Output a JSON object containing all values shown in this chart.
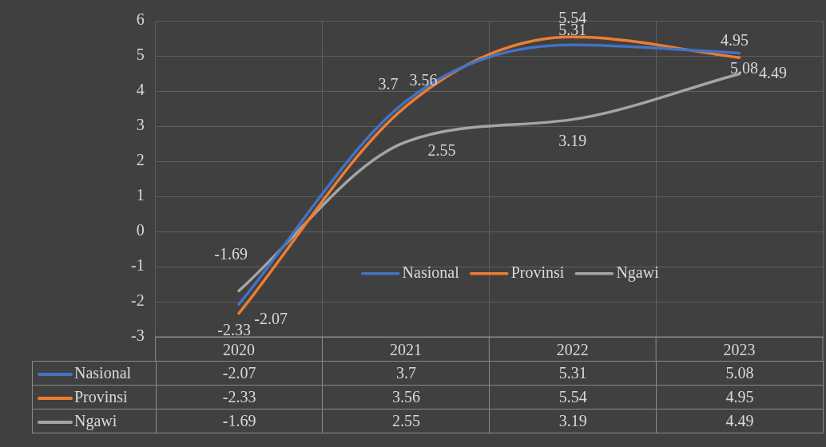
{
  "chart_data": {
    "type": "line",
    "categories": [
      "2020",
      "2021",
      "2022",
      "2023"
    ],
    "series": [
      {
        "name": "Nasional",
        "color": "#4472c4",
        "values": [
          -2.07,
          3.7,
          5.31,
          5.08
        ]
      },
      {
        "name": "Provinsi",
        "color": "#ed7d31",
        "values": [
          -2.33,
          3.56,
          5.54,
          4.95
        ]
      },
      {
        "name": "Ngawi",
        "color": "#a5a5a5",
        "values": [
          -1.69,
          2.55,
          3.19,
          4.49
        ]
      }
    ],
    "annotations": [
      {
        "text": "-2.07",
        "x": "2020",
        "y": -2.07
      },
      {
        "text": "3.7",
        "x": "2021",
        "y": 3.7
      },
      {
        "text": "5.31",
        "x": "2022",
        "y": 5.31
      },
      {
        "text": "5.08",
        "x": "2023",
        "y": 5.08
      },
      {
        "text": "-2.33",
        "x": "2020",
        "y": -2.33
      },
      {
        "text": "3.56",
        "x": "2021",
        "y": 3.56
      },
      {
        "text": "5.54",
        "x": "2022",
        "y": 5.54
      },
      {
        "text": "4.95",
        "x": "2023",
        "y": 4.95
      },
      {
        "text": "-1.69",
        "x": "2020",
        "y": -1.69
      },
      {
        "text": "2.55",
        "x": "2021",
        "y": 2.55
      },
      {
        "text": "3.19",
        "x": "2022",
        "y": 3.19
      },
      {
        "text": "4.49",
        "x": "2023",
        "y": 4.49
      }
    ],
    "ylim": [
      -3,
      6
    ],
    "yticks": [
      -3,
      -2,
      -1,
      0,
      1,
      2,
      3,
      4,
      5,
      6
    ],
    "grid": true,
    "legend": "bottom right",
    "data_labels": true,
    "marker": "none"
  }
}
